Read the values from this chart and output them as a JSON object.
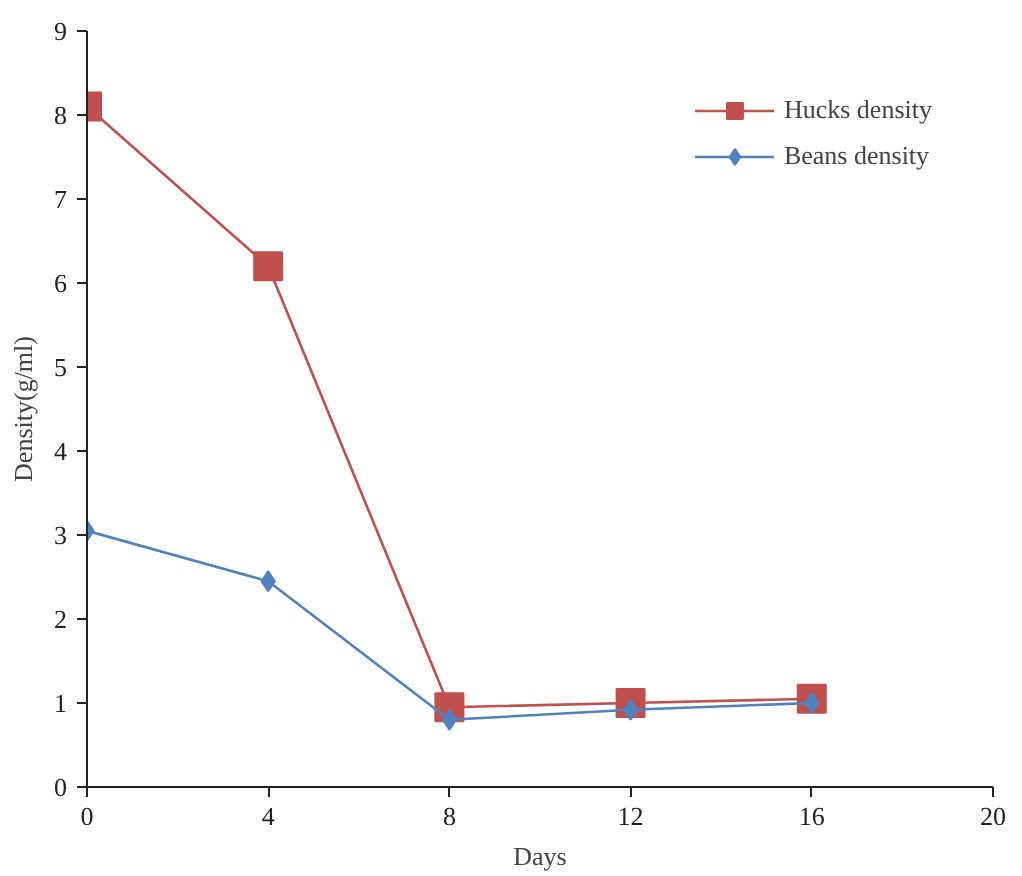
{
  "chart_data": {
    "type": "line",
    "xlabel": "Days",
    "ylabel": "Density(g/ml)",
    "x": [
      0,
      4,
      8,
      12,
      16
    ],
    "series": [
      {
        "name": "Hucks density",
        "color": "#c0504d",
        "marker": "square",
        "values": [
          8.1,
          6.2,
          0.95,
          1.0,
          1.05
        ]
      },
      {
        "name": "Beans density",
        "color": "#4f81bd",
        "marker": "diamond",
        "values": [
          3.05,
          2.45,
          0.8,
          0.92,
          1.0
        ]
      }
    ],
    "xlim": [
      0,
      20
    ],
    "xticks": [
      0,
      4,
      8,
      12,
      16,
      20
    ],
    "ylim": [
      0,
      9
    ],
    "yticks": [
      0,
      1,
      2,
      3,
      4,
      5,
      6,
      7,
      8,
      9
    ],
    "grid": false,
    "legend": "top right"
  }
}
